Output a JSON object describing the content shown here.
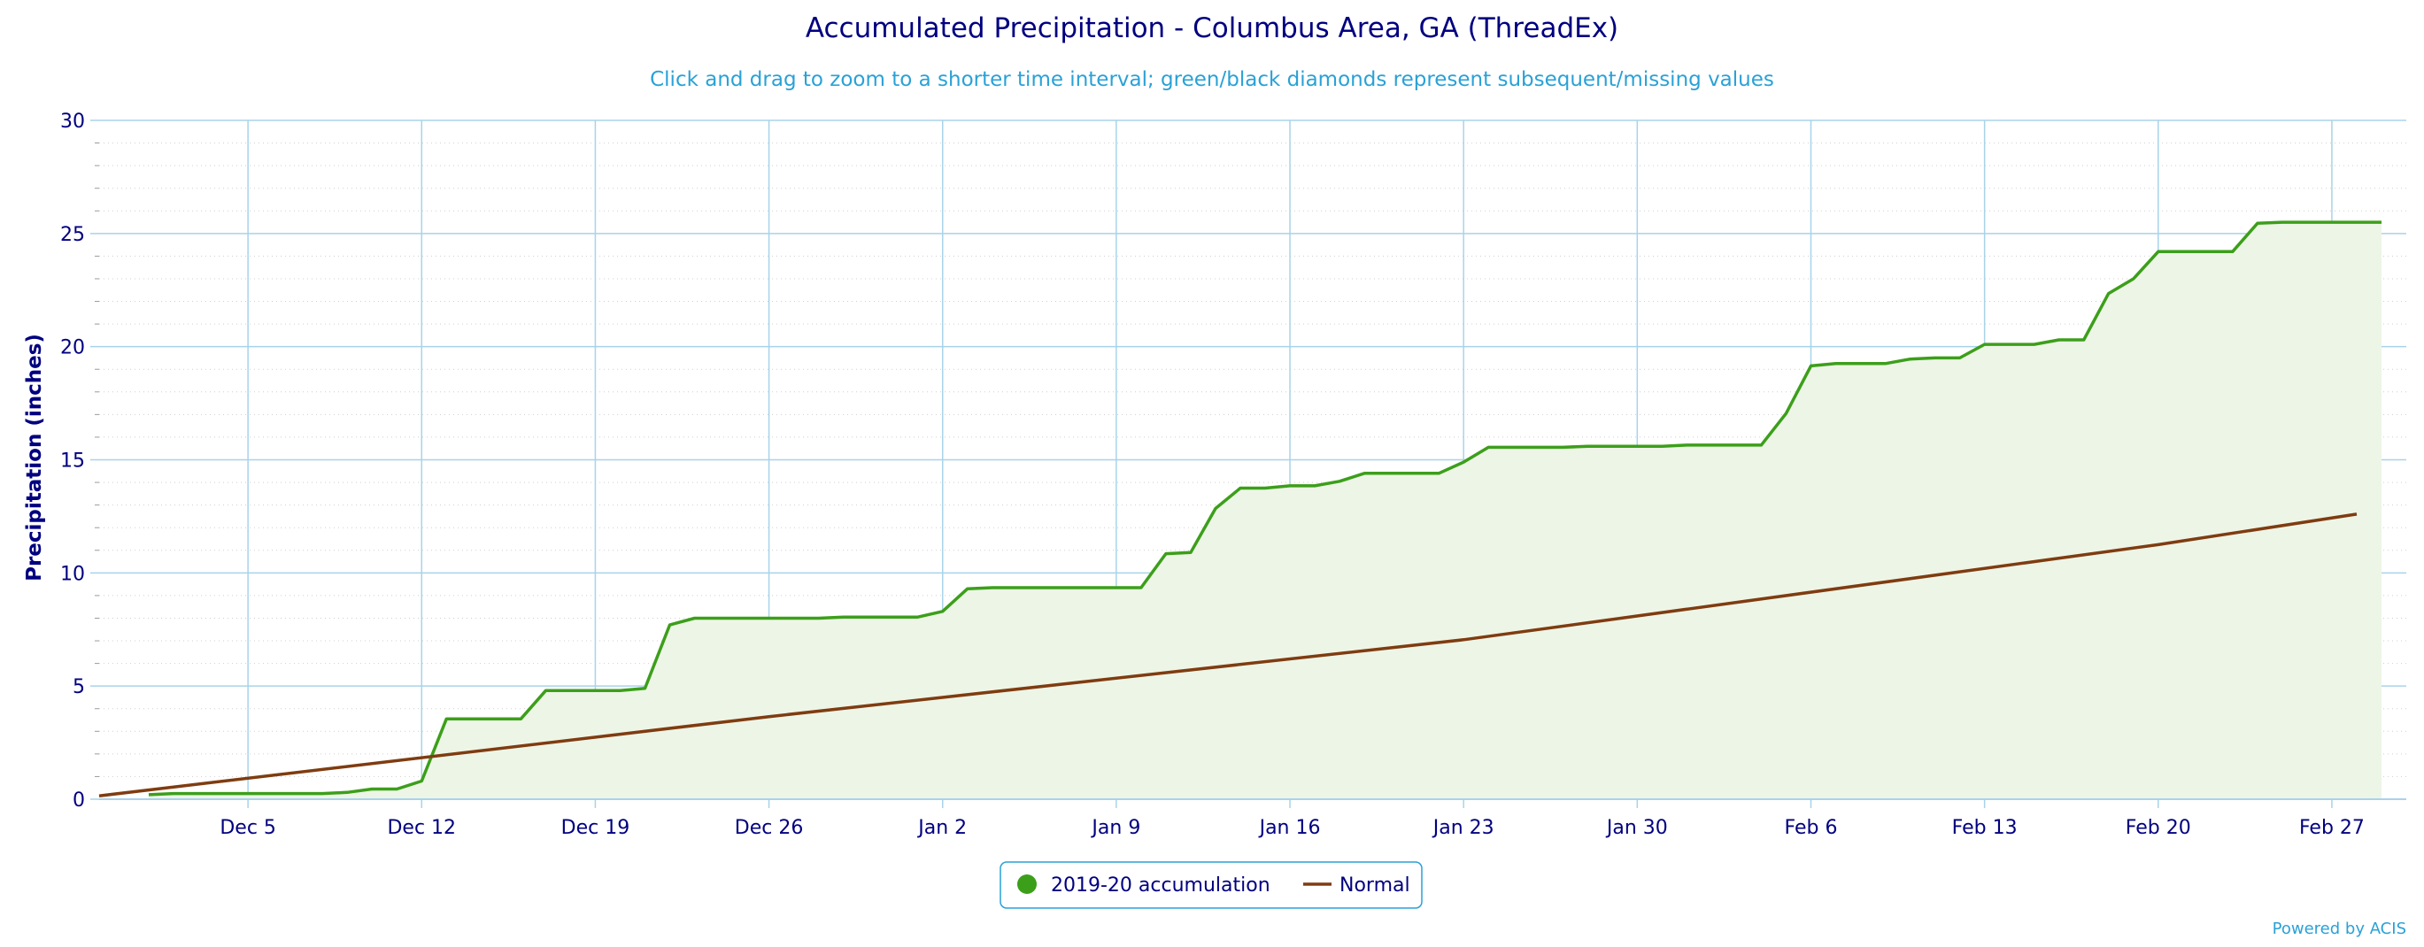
{
  "colors": {
    "title": "#000080",
    "subtitle": "#2aa1d6",
    "accumulation": "#3c9f1a",
    "accumulation_fill": "#edf5e7",
    "normal": "#7f3c10",
    "grid": "#a8d3ea",
    "axis_text": "#000080",
    "legend_border": "#2aa1d6"
  },
  "credit": "Powered by ACIS",
  "chart_data": {
    "type": "line",
    "title": "Accumulated Precipitation - Columbus Area, GA (ThreadEx)",
    "subtitle": "Click and drag to zoom to a shorter time interval; green/black diamonds represent subsequent/missing values",
    "xlabel": "",
    "ylabel": "Precipitation (inches)",
    "xlim": [
      "2019-11-29",
      "2020-03-01"
    ],
    "ylim": [
      0,
      30
    ],
    "yticks": [
      0,
      5,
      10,
      15,
      20,
      25,
      30
    ],
    "xticks": [
      {
        "date": "2019-12-05",
        "label": "Dec 5"
      },
      {
        "date": "2019-12-12",
        "label": "Dec 12"
      },
      {
        "date": "2019-12-19",
        "label": "Dec 19"
      },
      {
        "date": "2019-12-26",
        "label": "Dec 26"
      },
      {
        "date": "2020-01-02",
        "label": "Jan 2"
      },
      {
        "date": "2020-01-09",
        "label": "Jan 9"
      },
      {
        "date": "2020-01-16",
        "label": "Jan 16"
      },
      {
        "date": "2020-01-23",
        "label": "Jan 23"
      },
      {
        "date": "2020-01-30",
        "label": "Jan 30"
      },
      {
        "date": "2020-02-06",
        "label": "Feb 6"
      },
      {
        "date": "2020-02-13",
        "label": "Feb 13"
      },
      {
        "date": "2020-02-20",
        "label": "Feb 20"
      },
      {
        "date": "2020-02-27",
        "label": "Feb 27"
      }
    ],
    "grid": true,
    "legend_position": "bottom-center",
    "series": [
      {
        "name": "2019-20 accumulation",
        "marker": "circle",
        "fill": true,
        "points": [
          [
            "2019-12-01",
            0.2
          ],
          [
            "2019-12-02",
            0.25
          ],
          [
            "2019-12-03",
            0.25
          ],
          [
            "2019-12-04",
            0.25
          ],
          [
            "2019-12-05",
            0.25
          ],
          [
            "2019-12-06",
            0.25
          ],
          [
            "2019-12-07",
            0.25
          ],
          [
            "2019-12-08",
            0.25
          ],
          [
            "2019-12-09",
            0.3
          ],
          [
            "2019-12-10",
            0.45
          ],
          [
            "2019-12-11",
            0.45
          ],
          [
            "2019-12-12",
            0.8
          ],
          [
            "2019-12-13",
            3.55
          ],
          [
            "2019-12-14",
            3.55
          ],
          [
            "2019-12-15",
            3.55
          ],
          [
            "2019-12-16",
            3.55
          ],
          [
            "2019-12-17",
            4.8
          ],
          [
            "2019-12-18",
            4.8
          ],
          [
            "2019-12-19",
            4.8
          ],
          [
            "2019-12-20",
            4.8
          ],
          [
            "2019-12-21",
            4.9
          ],
          [
            "2019-12-22",
            7.7
          ],
          [
            "2019-12-23",
            8.0
          ],
          [
            "2019-12-24",
            8.0
          ],
          [
            "2019-12-25",
            8.0
          ],
          [
            "2019-12-26",
            8.0
          ],
          [
            "2019-12-27",
            8.0
          ],
          [
            "2019-12-28",
            8.0
          ],
          [
            "2019-12-29",
            8.05
          ],
          [
            "2019-12-30",
            8.05
          ],
          [
            "2019-12-31",
            8.05
          ],
          [
            "2020-01-01",
            8.05
          ],
          [
            "2020-01-02",
            8.3
          ],
          [
            "2020-01-03",
            9.3
          ],
          [
            "2020-01-04",
            9.35
          ],
          [
            "2020-01-05",
            9.35
          ],
          [
            "2020-01-06",
            9.35
          ],
          [
            "2020-01-07",
            9.35
          ],
          [
            "2020-01-08",
            9.35
          ],
          [
            "2020-01-09",
            9.35
          ],
          [
            "2020-01-10",
            9.35
          ],
          [
            "2020-01-11",
            10.85
          ],
          [
            "2020-01-12",
            10.9
          ],
          [
            "2020-01-13",
            12.85
          ],
          [
            "2020-01-14",
            13.75
          ],
          [
            "2020-01-15",
            13.75
          ],
          [
            "2020-01-16",
            13.85
          ],
          [
            "2020-01-17",
            13.85
          ],
          [
            "2020-01-18",
            14.05
          ],
          [
            "2020-01-19",
            14.4
          ],
          [
            "2020-01-20",
            14.4
          ],
          [
            "2020-01-21",
            14.4
          ],
          [
            "2020-01-22",
            14.4
          ],
          [
            "2020-01-23",
            14.9
          ],
          [
            "2020-01-24",
            15.55
          ],
          [
            "2020-01-25",
            15.55
          ],
          [
            "2020-01-26",
            15.55
          ],
          [
            "2020-01-27",
            15.55
          ],
          [
            "2020-01-28",
            15.6
          ],
          [
            "2020-01-29",
            15.6
          ],
          [
            "2020-01-30",
            15.6
          ],
          [
            "2020-01-31",
            15.6
          ],
          [
            "2020-02-01",
            15.65
          ],
          [
            "2020-02-02",
            15.65
          ],
          [
            "2020-02-03",
            15.65
          ],
          [
            "2020-02-04",
            15.65
          ],
          [
            "2020-02-05",
            17.05
          ],
          [
            "2020-02-06",
            19.15
          ],
          [
            "2020-02-07",
            19.25
          ],
          [
            "2020-02-08",
            19.25
          ],
          [
            "2020-02-09",
            19.25
          ],
          [
            "2020-02-10",
            19.45
          ],
          [
            "2020-02-11",
            19.5
          ],
          [
            "2020-02-12",
            19.5
          ],
          [
            "2020-02-13",
            20.1
          ],
          [
            "2020-02-14",
            20.1
          ],
          [
            "2020-02-15",
            20.1
          ],
          [
            "2020-02-16",
            20.3
          ],
          [
            "2020-02-17",
            20.3
          ],
          [
            "2020-02-18",
            22.35
          ],
          [
            "2020-02-19",
            23.0
          ],
          [
            "2020-02-20",
            24.2
          ],
          [
            "2020-02-21",
            24.2
          ],
          [
            "2020-02-22",
            24.2
          ],
          [
            "2020-02-23",
            24.2
          ],
          [
            "2020-02-24",
            25.45
          ],
          [
            "2020-02-25",
            25.5
          ],
          [
            "2020-02-26",
            25.5
          ],
          [
            "2020-02-27",
            25.5
          ],
          [
            "2020-02-28",
            25.5
          ],
          [
            "2020-02-29",
            25.5
          ]
        ]
      },
      {
        "name": "Normal",
        "marker": "line",
        "fill": false,
        "points": [
          [
            "2019-11-29",
            0.15
          ],
          [
            "2019-12-26",
            3.65
          ],
          [
            "2020-01-23",
            7.05
          ],
          [
            "2020-02-20",
            11.25
          ],
          [
            "2020-02-28",
            12.6
          ]
        ]
      }
    ]
  }
}
